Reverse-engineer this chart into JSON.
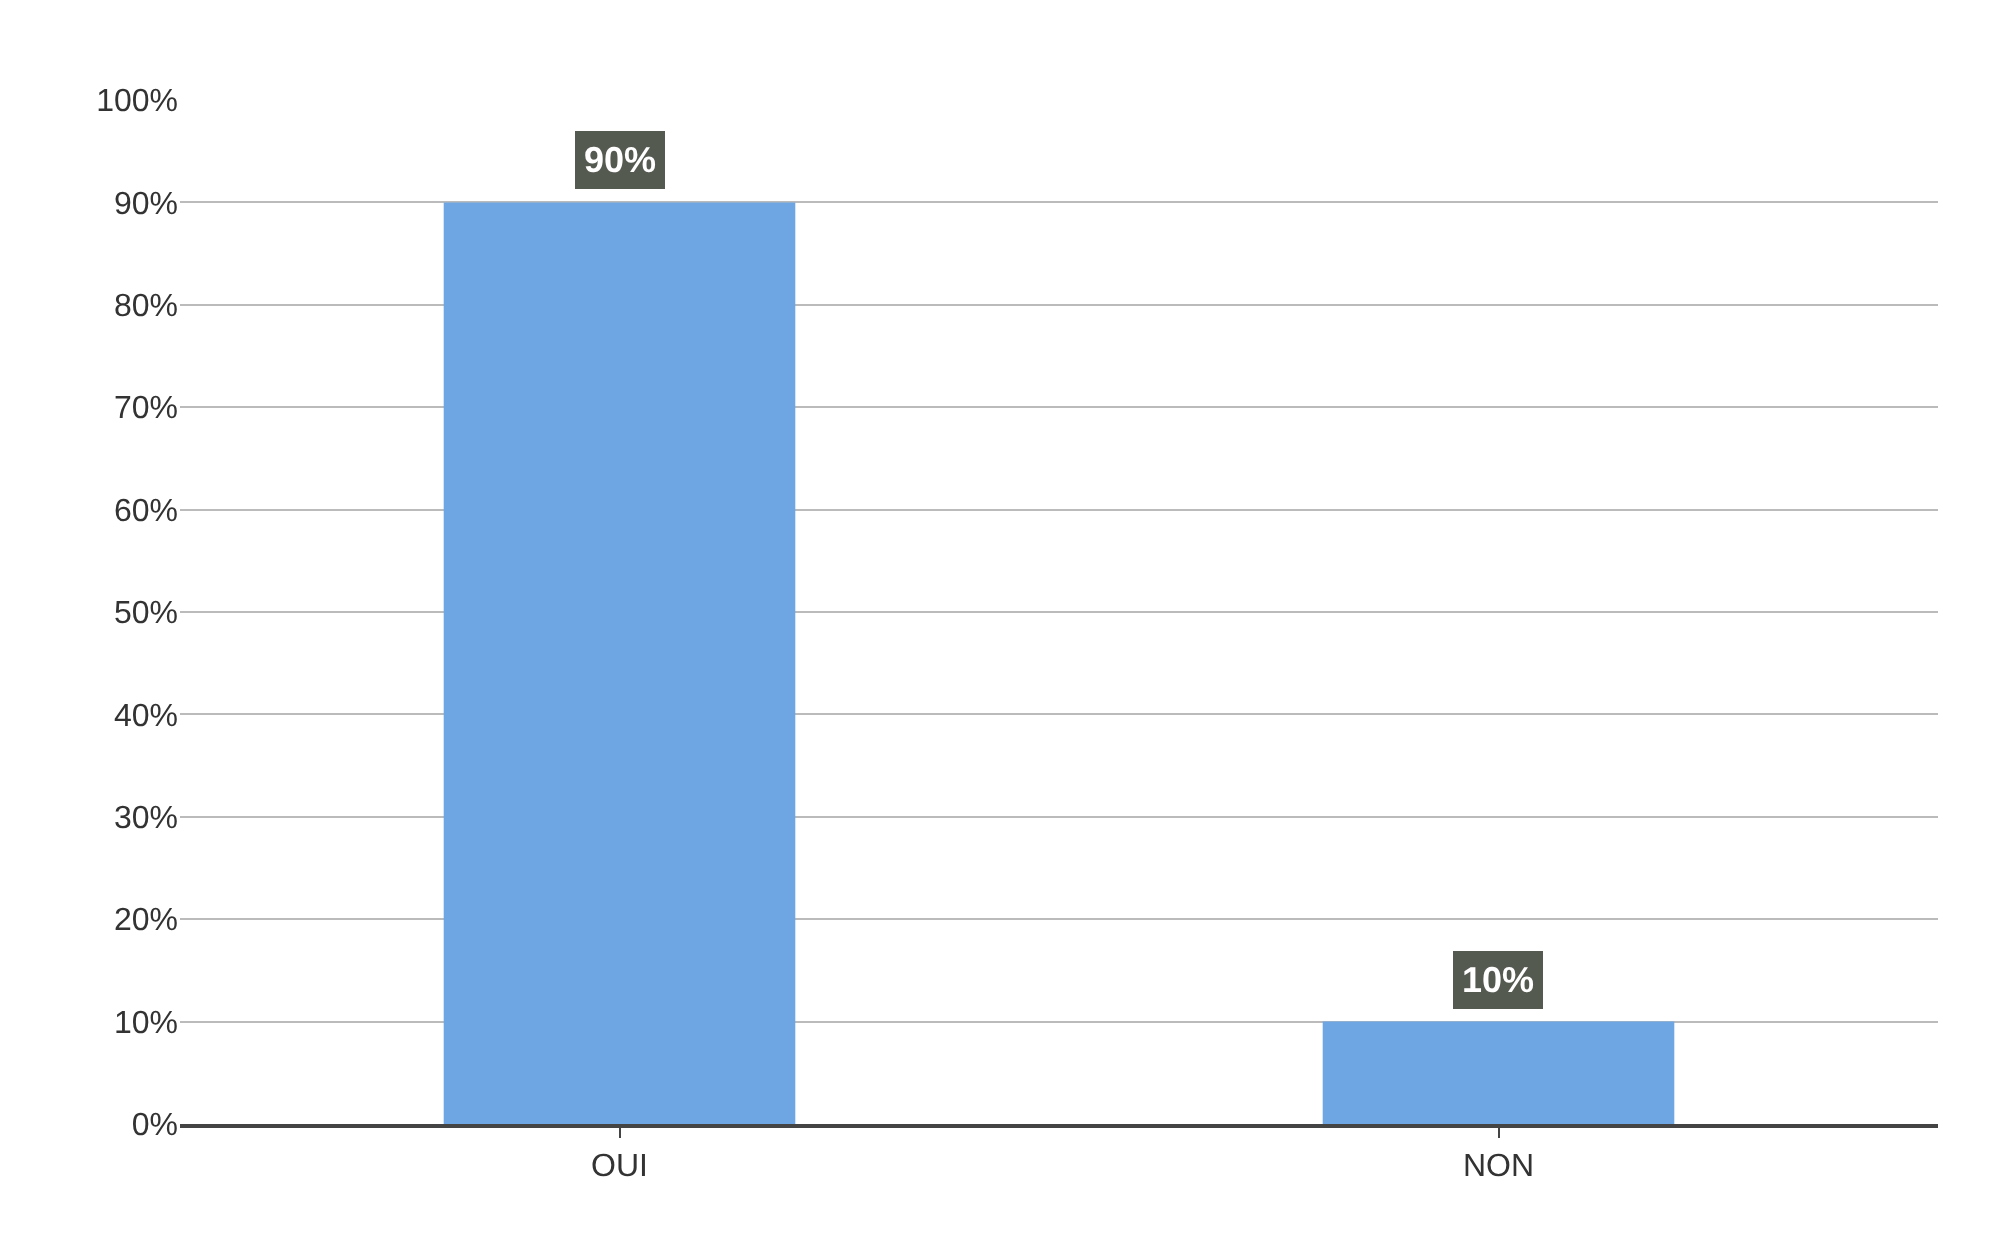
{
  "chart_data": {
    "type": "bar",
    "categories": [
      "OUI",
      "NON"
    ],
    "values": [
      90,
      10
    ],
    "value_labels": [
      "90%",
      "10%"
    ],
    "color": "#6ea6e4",
    "ylim": [
      0,
      100
    ],
    "yticks": [
      {
        "value": 0,
        "label": "0%"
      },
      {
        "value": 10,
        "label": "10%"
      },
      {
        "value": 20,
        "label": "20%"
      },
      {
        "value": 30,
        "label": "30%"
      },
      {
        "value": 40,
        "label": "40%"
      },
      {
        "value": 50,
        "label": "50%"
      },
      {
        "value": 60,
        "label": "60%"
      },
      {
        "value": 70,
        "label": "70%"
      },
      {
        "value": 80,
        "label": "80%"
      },
      {
        "value": 90,
        "label": "90%"
      },
      {
        "value": 100,
        "label": "100%"
      }
    ],
    "grid": "y"
  }
}
